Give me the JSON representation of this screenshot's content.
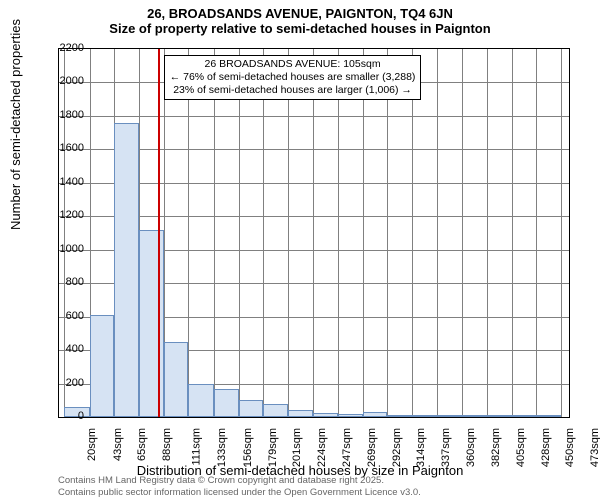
{
  "title_line1": "26, BROADSANDS AVENUE, PAIGNTON, TQ4 6JN",
  "title_line2": "Size of property relative to semi-detached houses in Paignton",
  "y_axis_label": "Number of semi-detached properties",
  "x_axis_label": "Distribution of semi-detached houses by size in Paignton",
  "footer_line1": "Contains HM Land Registry data © Crown copyright and database right 2025.",
  "footer_line2": "Contains public sector information licensed under the Open Government Licence v3.0.",
  "annotation": {
    "line1": "26 BROADSANDS AVENUE: 105sqm",
    "line2": "← 76% of semi-detached houses are smaller (3,288)",
    "line3": "23% of semi-detached houses are larger (1,006) →"
  },
  "chart": {
    "type": "histogram",
    "ylim": [
      0,
      2200
    ],
    "ytick_step": 200,
    "y_grid_color": "#808080",
    "x_grid_color": "#808080",
    "bar_fill": "#d6e3f3",
    "bar_stroke": "#6a8fbf",
    "reference_line": {
      "x": 105,
      "color": "#cc0000"
    },
    "x_ticks": [
      20,
      43,
      65,
      88,
      111,
      133,
      156,
      179,
      201,
      224,
      247,
      269,
      292,
      314,
      337,
      360,
      382,
      405,
      428,
      450,
      473
    ],
    "x_tick_suffix": "sqm",
    "x_range": [
      15,
      480
    ],
    "bars": [
      {
        "x0": 20,
        "x1": 43,
        "value": 60
      },
      {
        "x0": 43,
        "x1": 65,
        "value": 610
      },
      {
        "x0": 65,
        "x1": 88,
        "value": 1760
      },
      {
        "x0": 88,
        "x1": 111,
        "value": 1120
      },
      {
        "x0": 111,
        "x1": 133,
        "value": 450
      },
      {
        "x0": 133,
        "x1": 156,
        "value": 200
      },
      {
        "x0": 156,
        "x1": 179,
        "value": 170
      },
      {
        "x0": 179,
        "x1": 201,
        "value": 100
      },
      {
        "x0": 201,
        "x1": 224,
        "value": 80
      },
      {
        "x0": 224,
        "x1": 247,
        "value": 40
      },
      {
        "x0": 247,
        "x1": 269,
        "value": 25
      },
      {
        "x0": 269,
        "x1": 292,
        "value": 20
      },
      {
        "x0": 292,
        "x1": 314,
        "value": 30
      },
      {
        "x0": 314,
        "x1": 337,
        "value": 10
      },
      {
        "x0": 337,
        "x1": 360,
        "value": 5
      },
      {
        "x0": 360,
        "x1": 382,
        "value": 5
      },
      {
        "x0": 382,
        "x1": 405,
        "value": 3
      },
      {
        "x0": 405,
        "x1": 428,
        "value": 3
      },
      {
        "x0": 428,
        "x1": 450,
        "value": 2
      },
      {
        "x0": 450,
        "x1": 473,
        "value": 2
      }
    ],
    "background": "#ffffff",
    "label_fontsize": 11,
    "title_fontsize": 13
  }
}
